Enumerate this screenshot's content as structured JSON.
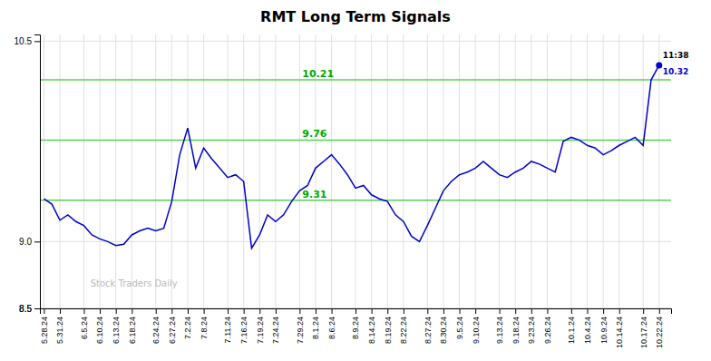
{
  "chart_data": {
    "type": "line",
    "title": "RMT Long Term Signals",
    "color": "#0000cc",
    "categories": [
      "5.28.24",
      null,
      "5.31.24",
      null,
      null,
      "6.5.24",
      null,
      "6.10.24",
      null,
      "6.13.24",
      null,
      "6.18.24",
      null,
      null,
      "6.24.24",
      null,
      "6.27.24",
      null,
      "7.2.24",
      null,
      "7.8.24",
      null,
      null,
      "7.11.24",
      null,
      "7.16.24",
      null,
      "7.19.24",
      null,
      "7.24.24",
      null,
      null,
      "7.29.24",
      null,
      "8.1.24",
      null,
      "8.6.24",
      null,
      null,
      "8.9.24",
      null,
      "8.14.24",
      null,
      "8.19.24",
      null,
      "8.22.24",
      null,
      null,
      "8.27.24",
      null,
      "8.30.24",
      null,
      "9.5.24",
      null,
      "9.10.24",
      null,
      null,
      "9.13.24",
      null,
      "9.18.24",
      null,
      "9.23.24",
      null,
      "9.26.24",
      null,
      null,
      "10.1.24",
      null,
      "10.4.24",
      null,
      "10.9.24",
      null,
      "10.14.24",
      null,
      null,
      "10.17.24",
      null,
      "10.22.24"
    ],
    "values": [
      9.32,
      9.28,
      9.16,
      9.2,
      9.15,
      9.12,
      9.05,
      9.02,
      9.0,
      8.97,
      8.98,
      9.05,
      9.08,
      9.1,
      9.08,
      9.1,
      9.3,
      9.65,
      9.85,
      9.55,
      9.7,
      9.62,
      9.55,
      9.48,
      9.5,
      9.45,
      8.95,
      9.05,
      9.2,
      9.15,
      9.2,
      9.3,
      9.38,
      9.42,
      9.55,
      9.6,
      9.65,
      9.58,
      9.5,
      9.4,
      9.42,
      9.35,
      9.32,
      9.3,
      9.2,
      9.15,
      9.04,
      9.0,
      9.12,
      9.25,
      9.38,
      9.45,
      9.5,
      9.52,
      9.55,
      9.6,
      9.55,
      9.5,
      9.48,
      9.52,
      9.55,
      9.6,
      9.58,
      9.55,
      9.52,
      9.75,
      9.78,
      9.76,
      9.72,
      9.7,
      9.65,
      9.68,
      9.72,
      9.75,
      9.78,
      9.72,
      10.21,
      10.32
    ],
    "ylim": [
      8.5,
      10.55
    ],
    "yticks": [
      8.5,
      {
        "value": 9.0,
        "label": "9.0"
      },
      8.5,
      10.5
    ],
    "grid": true,
    "hlines": [
      {
        "value": 9.31,
        "label": "9.31"
      },
      {
        "value": 9.76,
        "label": "9.76"
      },
      {
        "value": 10.21,
        "label": "10.21"
      }
    ],
    "annotations": [
      "11:38",
      "10.32"
    ],
    "watermark": "Stock Traders Daily"
  }
}
